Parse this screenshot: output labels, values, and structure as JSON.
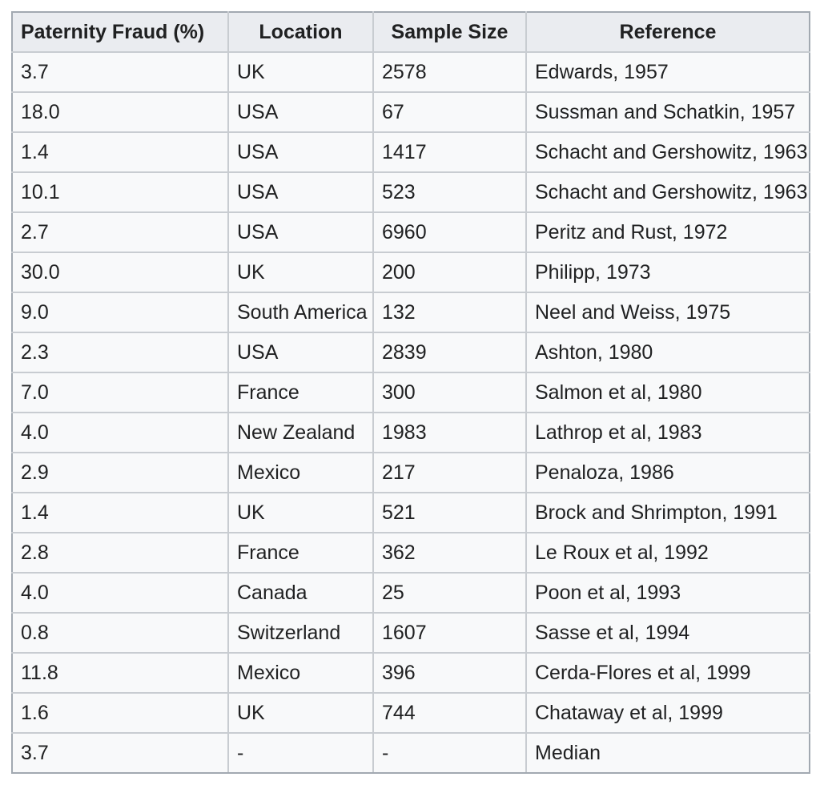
{
  "chart_data": {
    "type": "table",
    "columns": [
      "Paternity Fraud (%)",
      "Location",
      "Sample Size",
      "Reference"
    ],
    "rows": [
      [
        "3.7",
        "UK",
        "2578",
        "Edwards, 1957"
      ],
      [
        "18.0",
        "USA",
        "67",
        "Sussman and Schatkin, 1957"
      ],
      [
        "1.4",
        "USA",
        "1417",
        "Schacht and Gershowitz, 1963"
      ],
      [
        "10.1",
        "USA",
        "523",
        "Schacht and Gershowitz, 1963"
      ],
      [
        "2.7",
        "USA",
        "6960",
        "Peritz and Rust, 1972"
      ],
      [
        "30.0",
        "UK",
        "200",
        "Philipp, 1973"
      ],
      [
        "9.0",
        "South America",
        "132",
        "Neel and Weiss, 1975"
      ],
      [
        "2.3",
        "USA",
        "2839",
        "Ashton, 1980"
      ],
      [
        "7.0",
        "France",
        "300",
        "Salmon et al, 1980"
      ],
      [
        "4.0",
        "New Zealand",
        "1983",
        "Lathrop et al, 1983"
      ],
      [
        "2.9",
        "Mexico",
        "217",
        "Penaloza, 1986"
      ],
      [
        "1.4",
        "UK",
        "521",
        "Brock and Shrimpton, 1991"
      ],
      [
        "2.8",
        "France",
        "362",
        "Le Roux et al, 1992"
      ],
      [
        "4.0",
        "Canada",
        "25",
        "Poon et al, 1993"
      ],
      [
        "0.8",
        "Switzerland",
        "1607",
        "Sasse et al, 1994"
      ],
      [
        "11.8",
        "Mexico",
        "396",
        "Cerda-Flores et al, 1999"
      ],
      [
        "1.6",
        "UK",
        "744",
        "Chataway et al, 1999"
      ],
      [
        "3.7",
        "-",
        "-",
        "Median"
      ]
    ]
  },
  "colors": {
    "page_bg": "#ffffff",
    "row_bg": "#f8f9fa",
    "header_bg": "#eaecf0",
    "border_outer": "#a2a9b1",
    "border_inner": "#c8ccd1",
    "text": "#202122"
  }
}
